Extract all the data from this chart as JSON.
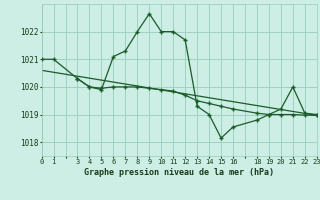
{
  "title": "Graphe pression niveau de la mer (hPa)",
  "bg_color": "#cceee4",
  "grid_color": "#99ccbb",
  "line_color": "#1a5c2a",
  "xlim": [
    0,
    23
  ],
  "ylim": [
    1017.5,
    1023.0
  ],
  "yticks": [
    1018,
    1019,
    1020,
    1021,
    1022
  ],
  "series1_x": [
    0,
    1,
    3,
    4,
    5,
    6,
    7,
    8,
    9,
    10,
    11,
    12,
    13,
    14,
    15,
    16,
    18,
    19,
    20,
    21,
    22,
    23
  ],
  "series1_y": [
    1021.0,
    1021.0,
    1020.3,
    1020.0,
    1019.9,
    1021.1,
    1021.3,
    1022.0,
    1022.65,
    1022.0,
    1022.0,
    1021.7,
    1019.3,
    1019.0,
    1018.15,
    1018.55,
    1018.8,
    1019.0,
    1019.2,
    1020.0,
    1019.05,
    1019.0
  ],
  "series2_x": [
    3,
    4,
    5,
    6,
    7,
    8,
    9,
    10,
    11,
    12,
    13,
    14,
    15,
    16,
    18,
    19,
    20,
    21,
    22,
    23
  ],
  "series2_y": [
    1020.3,
    1020.0,
    1019.95,
    1020.0,
    1020.0,
    1020.0,
    1019.95,
    1019.9,
    1019.85,
    1019.7,
    1019.5,
    1019.4,
    1019.3,
    1019.2,
    1019.05,
    1019.0,
    1019.0,
    1019.0,
    1018.98,
    1018.97
  ],
  "trend_x": [
    0,
    23
  ],
  "trend_y": [
    1020.6,
    1018.97
  ]
}
